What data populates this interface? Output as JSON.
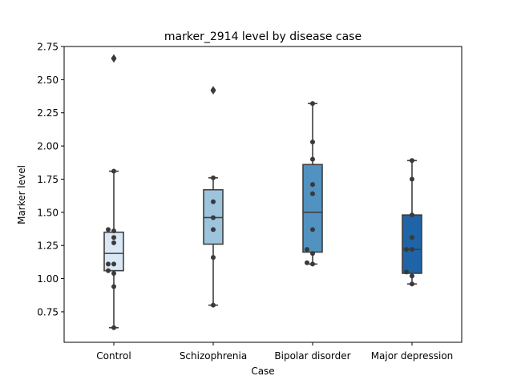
{
  "chart_data": {
    "type": "box",
    "title": "marker_2914 level by disease case",
    "xlabel": "Case",
    "ylabel": "Marker level",
    "ylim": [
      0.52,
      2.75
    ],
    "yticks": [
      0.75,
      1.0,
      1.25,
      1.5,
      1.75,
      2.0,
      2.25,
      2.5,
      2.75
    ],
    "ytick_labels": [
      "0.75",
      "1.00",
      "1.25",
      "1.50",
      "1.75",
      "2.00",
      "2.25",
      "2.50",
      "2.75"
    ],
    "categories": [
      "Control",
      "Schizophrenia",
      "Bipolar disorder",
      "Major depression"
    ],
    "grid": false,
    "legend": "none",
    "boxes": [
      {
        "category": "Control",
        "color": "#dae8f5",
        "whisker_low": 0.63,
        "q1": 1.06,
        "median": 1.19,
        "q3": 1.35,
        "whisker_high": 1.81,
        "outliers": [
          2.66
        ],
        "points": [
          0.63,
          0.94,
          1.04,
          1.06,
          1.11,
          1.11,
          1.27,
          1.31,
          1.36,
          1.37,
          1.81,
          2.66
        ]
      },
      {
        "category": "Schizophrenia",
        "color": "#9dc4dd",
        "whisker_low": 0.8,
        "q1": 1.26,
        "median": 1.46,
        "q3": 1.67,
        "whisker_high": 1.76,
        "outliers": [
          2.42
        ],
        "points": [
          0.8,
          1.16,
          1.37,
          1.46,
          1.58,
          1.76,
          2.42
        ]
      },
      {
        "category": "Bipolar disorder",
        "color": "#5192c1",
        "whisker_low": 1.11,
        "q1": 1.2,
        "median": 1.5,
        "q3": 1.86,
        "whisker_high": 2.32,
        "outliers": [],
        "points": [
          1.11,
          1.12,
          1.19,
          1.22,
          1.37,
          1.64,
          1.71,
          1.9,
          2.03,
          2.32
        ]
      },
      {
        "category": "Major depression",
        "color": "#1f64a6",
        "whisker_low": 0.96,
        "q1": 1.04,
        "median": 1.22,
        "q3": 1.48,
        "whisker_high": 1.89,
        "outliers": [],
        "points": [
          0.96,
          1.02,
          1.05,
          1.22,
          1.22,
          1.31,
          1.48,
          1.75,
          1.89
        ]
      }
    ]
  }
}
